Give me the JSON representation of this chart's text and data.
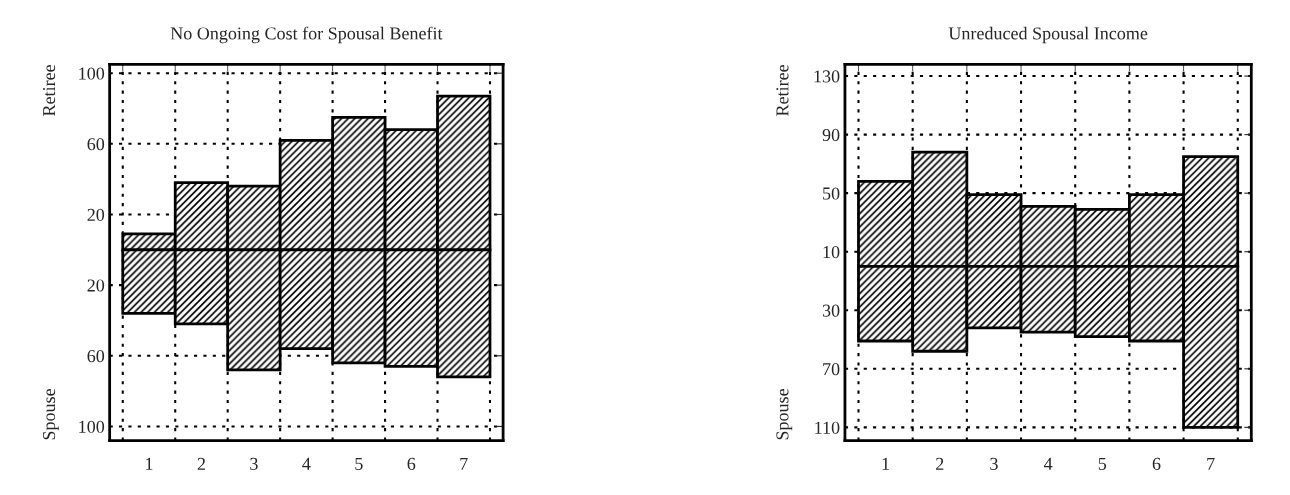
{
  "chart_data": [
    {
      "type": "bar",
      "title": "No Ongoing Cost for Spousal Benefit",
      "categories": [
        "1",
        "2",
        "3",
        "4",
        "5",
        "6",
        "7"
      ],
      "series": [
        {
          "color": "#000000",
          "values": [
            9,
            38,
            36,
            62,
            75,
            68,
            87
          ]
        },
        {
          "color": "#000000",
          "values": [
            -36,
            -42,
            -68,
            -56,
            -64,
            -66,
            -72
          ]
        }
      ],
      "stacked": true,
      "annotations": [
        "Retiree",
        "Spouse"
      ],
      "ylim": [
        -108,
        105
      ],
      "yticks": [
        100,
        60,
        20,
        {
          "value": -20,
          "label": "20"
        },
        {
          "value": -60,
          "label": "60"
        },
        {
          "value": -100,
          "label": "100"
        }
      ],
      "grid": true,
      "legend": false
    },
    {
      "type": "bar",
      "title": "Unreduced Spousal Income",
      "categories": [
        "1",
        "2",
        "3",
        "4",
        "5",
        "6",
        "7"
      ],
      "series": [
        {
          "color": "#000000",
          "values": [
            58,
            78,
            49,
            41,
            39,
            49,
            75
          ]
        },
        {
          "color": "#000000",
          "values": [
            -51,
            -58,
            -42,
            -45,
            -48,
            -51,
            -110
          ]
        }
      ],
      "stacked": true,
      "annotations": [
        "Retiree",
        "Spouse"
      ],
      "ylim": [
        -119,
        138
      ],
      "yticks": [
        130,
        90,
        50,
        10,
        {
          "value": -30,
          "label": "30"
        },
        {
          "value": -70,
          "label": "70"
        },
        {
          "value": -110,
          "label": "110"
        }
      ],
      "grid": true,
      "legend": false
    }
  ]
}
